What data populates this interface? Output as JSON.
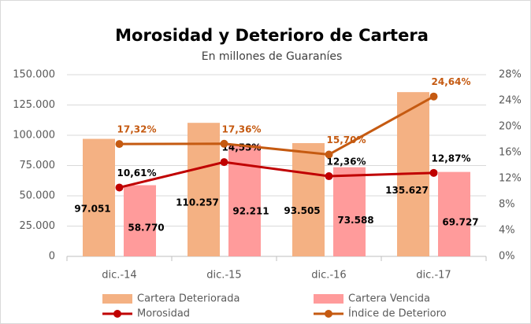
{
  "chart_data": {
    "type": "bar-line",
    "title": "Morosidad y Deterioro de Cartera",
    "subtitle": "En millones de Guaraníes",
    "categories": [
      "dic.-14",
      "dic.-15",
      "dic.-16",
      "dic.-17"
    ],
    "series": [
      {
        "name": "Cartera Deteriorada",
        "type": "bar",
        "color": "#f4b183",
        "values": [
          97051,
          110257,
          93505,
          135627
        ],
        "value_labels": [
          "97.051",
          "110.257",
          "93.505",
          "135.627"
        ]
      },
      {
        "name": "Cartera Vencida",
        "type": "bar",
        "color": "#ff9b9b",
        "values": [
          58770,
          92211,
          73588,
          69727
        ],
        "value_labels": [
          "58.770",
          "92.211",
          "73.588",
          "69.727"
        ]
      },
      {
        "name": "Morosidad",
        "type": "line",
        "axis": "y2",
        "color": "#c00000",
        "values": [
          10.61,
          14.53,
          12.36,
          12.87
        ],
        "value_labels": [
          "10,61%",
          "14,53%",
          "12,36%",
          "12,87%"
        ]
      },
      {
        "name": "Índice de Deterioro",
        "type": "line",
        "axis": "y2",
        "color": "#c55a11",
        "values": [
          17.32,
          17.36,
          15.7,
          24.64
        ],
        "value_labels": [
          "17,32%",
          "17,36%",
          "15,70%",
          "24,64%"
        ]
      }
    ],
    "ylim": [
      0,
      150000
    ],
    "yticks": [
      0,
      {
        "value": 25000,
        "label": "25.000"
      },
      {
        "value": 50000,
        "label": "50.000"
      },
      {
        "value": 75000,
        "label": "75.000"
      },
      {
        "value": 100000,
        "label": "100.000"
      },
      {
        "value": 125000,
        "label": "125.000"
      },
      {
        "value": 150000,
        "label": "150.000"
      }
    ],
    "y2lim": [
      0,
      28
    ],
    "y2ticks": [
      {
        "value": 0,
        "label": "0%"
      },
      {
        "value": 4,
        "label": "4%"
      },
      {
        "value": 8,
        "label": "8%"
      },
      {
        "value": 12,
        "label": "12%"
      },
      {
        "value": 16,
        "label": "16%"
      },
      {
        "value": 20,
        "label": "20%"
      },
      {
        "value": 24,
        "label": "24%"
      },
      {
        "value": 28,
        "label": "28%"
      }
    ],
    "grid": true,
    "legend": "bottom"
  }
}
